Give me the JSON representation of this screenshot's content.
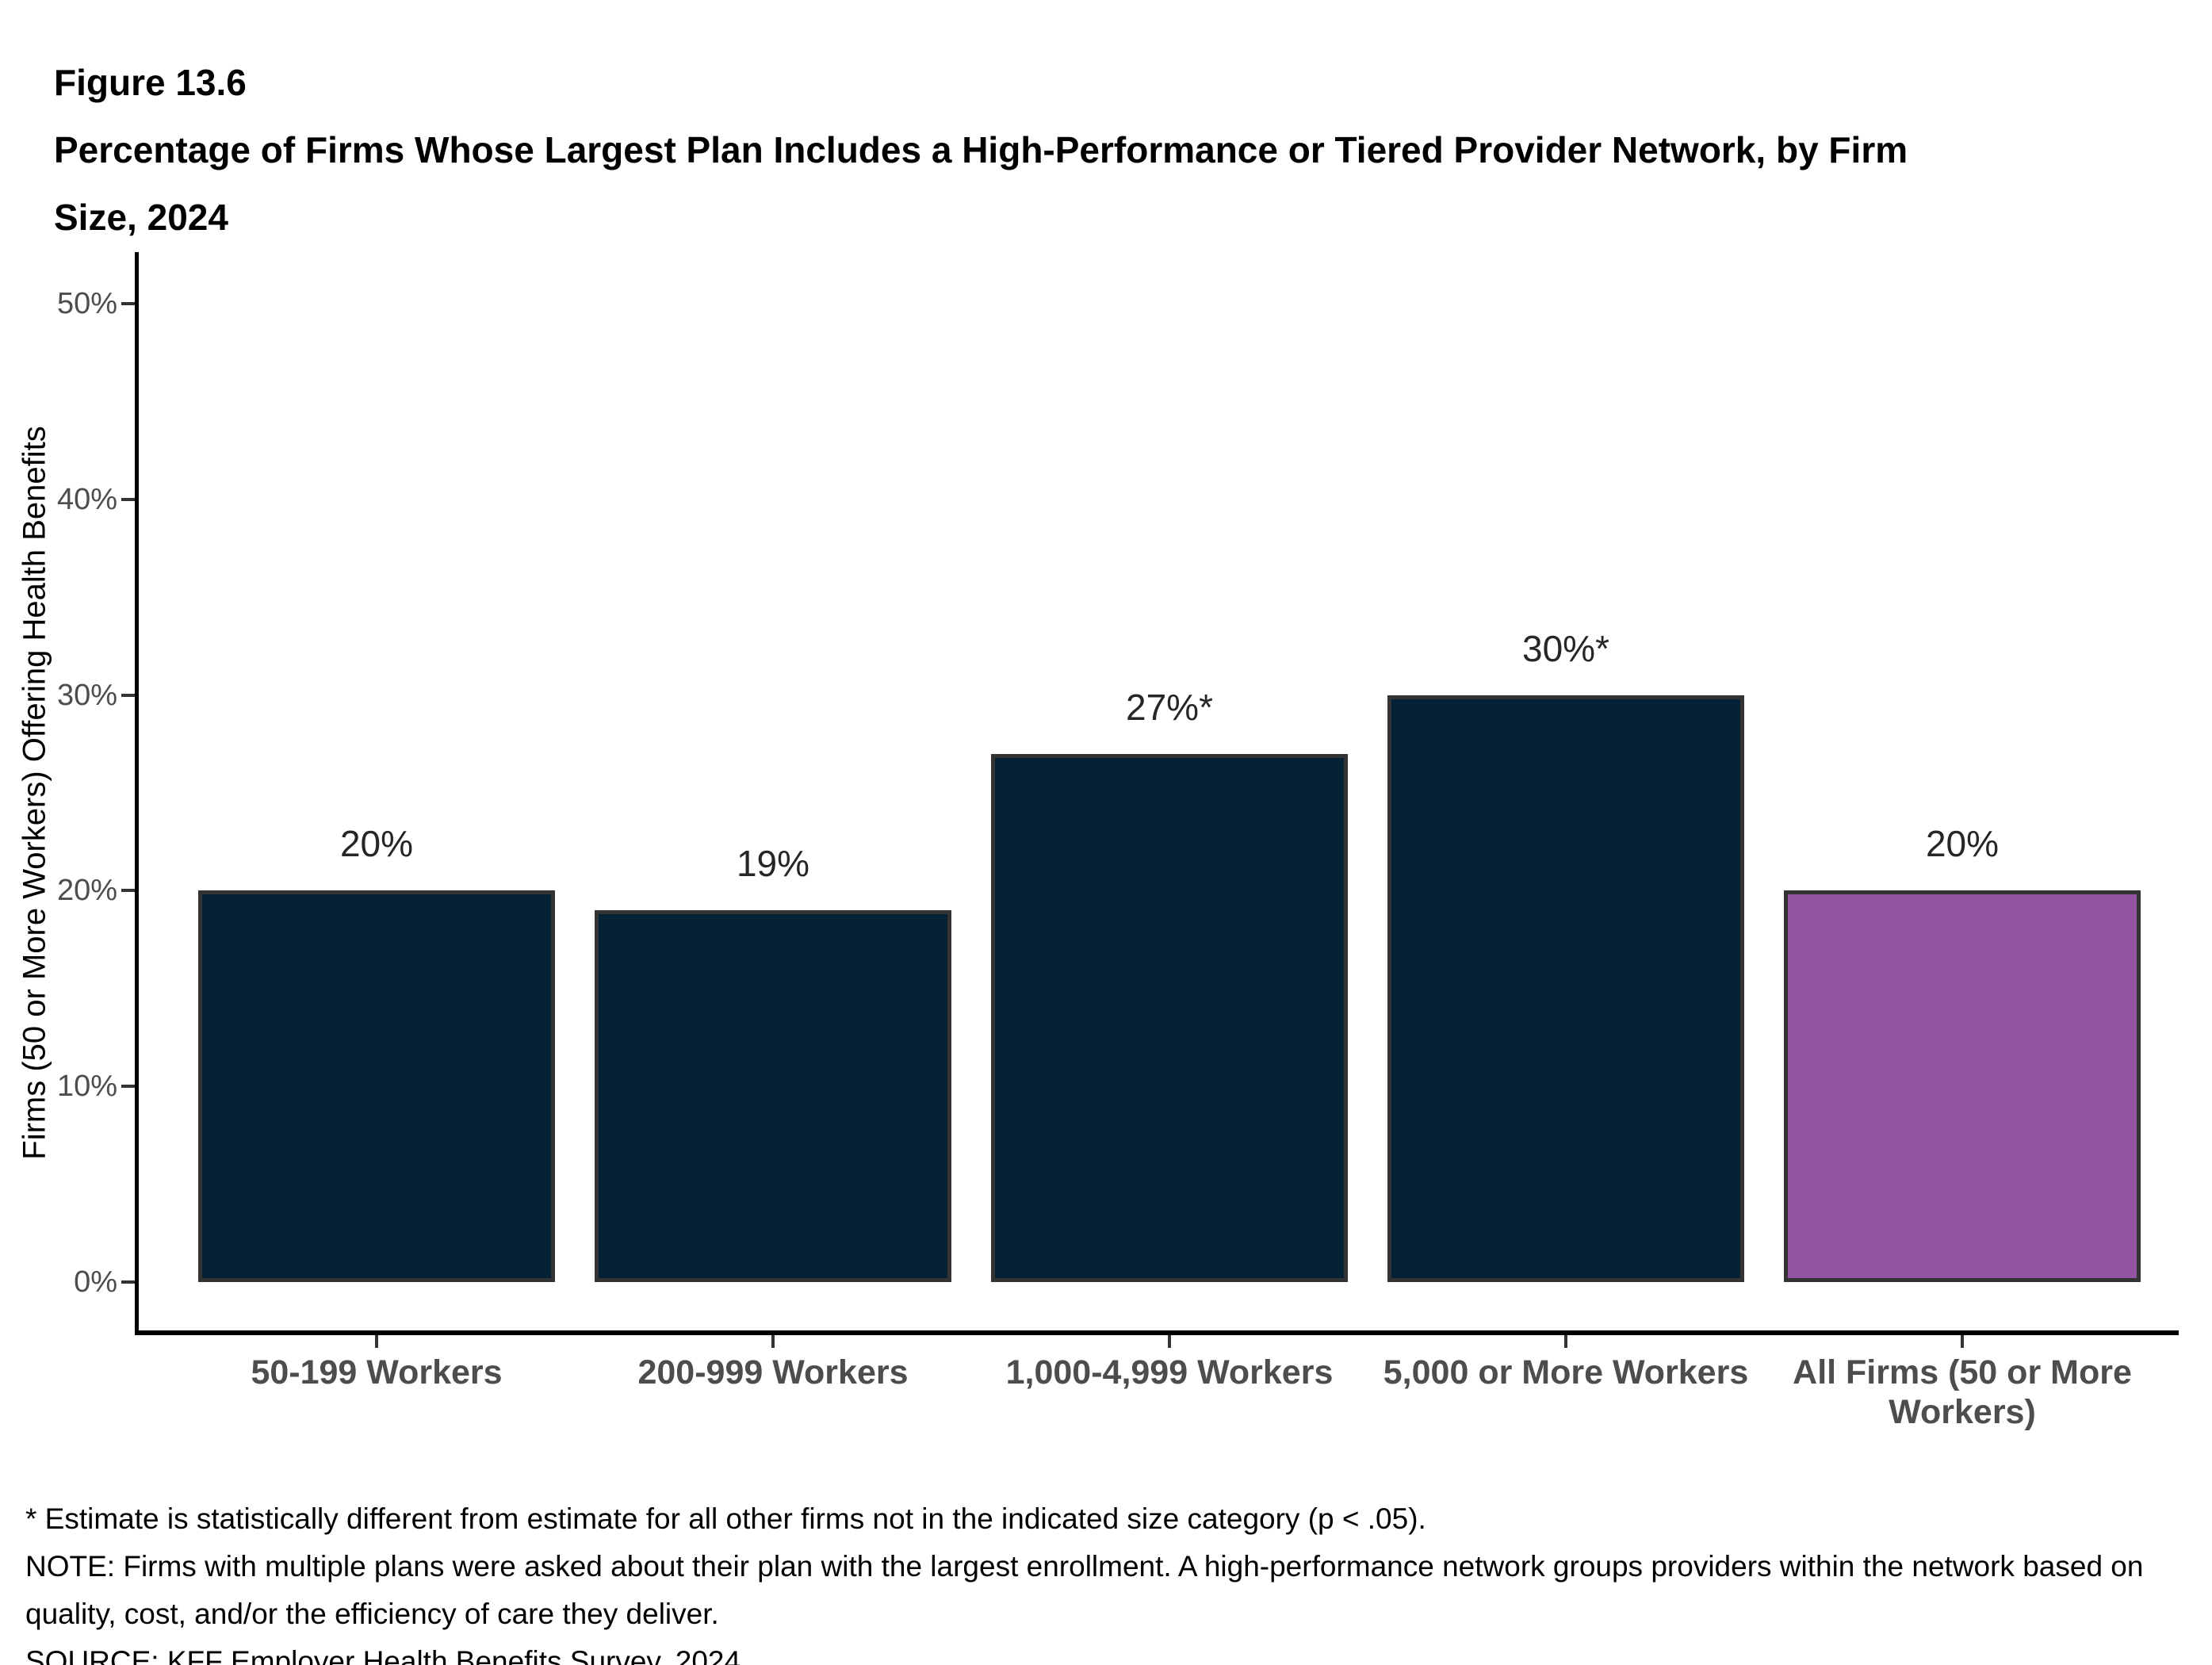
{
  "figure": {
    "label": "Figure 13.6",
    "title": "Percentage of Firms Whose Largest Plan Includes a High-Performance or Tiered Provider Network, by Firm Size, 2024"
  },
  "chart_data": {
    "type": "bar",
    "categories": [
      "50-199 Workers",
      "200-999 Workers",
      "1,000-4,999 Workers",
      "5,000 or More Workers",
      "All Firms (50 or More Workers)"
    ],
    "values": [
      20,
      19,
      27,
      30,
      20
    ],
    "bar_value_labels": [
      "20%",
      "19%",
      "27%*",
      "30%*",
      "20%"
    ],
    "bar_colors": [
      "#042136",
      "#042136",
      "#042136",
      "#042136",
      "#9253a0"
    ],
    "bar_border_color": "#333333",
    "ylabel": "Firms (50 or More Workers) Offering Health Benefits",
    "xlabel": "",
    "y_ticks": [
      "0%",
      "10%",
      "20%",
      "30%",
      "40%",
      "50%"
    ],
    "ylim": [
      0,
      50
    ],
    "grid": false,
    "legend": false
  },
  "footnotes": {
    "asterisk": "* Estimate is statistically different from estimate for all other firms not in the indicated size category (p < .05).",
    "note": "NOTE: Firms with multiple plans were asked about their plan with the largest enrollment.  A high-performance network groups providers within the network based on quality, cost, and/or the efficiency of care they deliver.",
    "source": "SOURCE: KFF Employer Health Benefits Survey, 2024"
  }
}
